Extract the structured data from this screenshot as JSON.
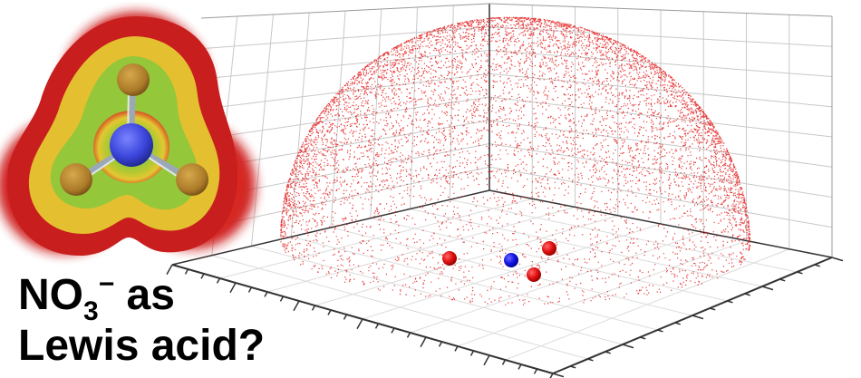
{
  "caption": {
    "line1_prefix": "NO",
    "line1_subscript": "3",
    "line1_superscript": "−",
    "line1_suffix": " as",
    "line2": "Lewis acid?"
  },
  "scene": {
    "point_cloud": {
      "shape": "hemisphere",
      "color": "#e31b1b",
      "point_count": 9000
    },
    "atoms": [
      {
        "element": "O",
        "color": "#e01010"
      },
      {
        "element": "N",
        "color": "#1414e6"
      },
      {
        "element": "O",
        "color": "#e01010"
      },
      {
        "element": "O",
        "color": "#e01010"
      }
    ],
    "grid": true,
    "grid_color": "#c8c8c8",
    "axis_color": "#333333"
  },
  "esp_surface": {
    "colors": {
      "negative": "#d81e1e",
      "intermediate": "#e6c832",
      "neutral": "#8cc83c",
      "positive_ring": "#28b4dc",
      "center": "#2850dc"
    },
    "atom_colors": {
      "nitrogen": "#3c46dc",
      "oxygen": "#aa7a28"
    }
  }
}
